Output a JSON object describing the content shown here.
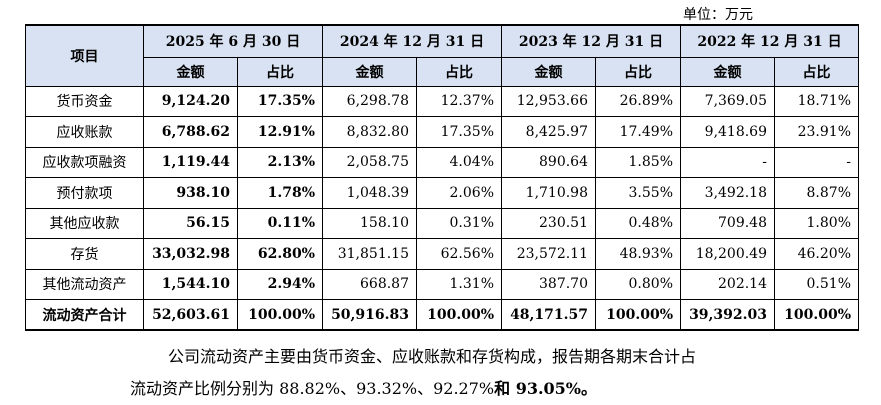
{
  "unit_label": "单位：万元",
  "table": {
    "item_header": "项目",
    "periods": [
      "2025 年 6 月 30 日",
      "2024 年 12 月 31 日",
      "2023 年 12 月 31 日",
      "2022 年 12 月 31 日"
    ],
    "amount_label": "金额",
    "ratio_label": "占比",
    "rows": [
      {
        "name": "货币资金",
        "values": [
          "9,124.20",
          "17.35%",
          "6,298.78",
          "12.37%",
          "12,953.66",
          "26.89%",
          "7,369.05",
          "18.71%"
        ]
      },
      {
        "name": "应收账款",
        "values": [
          "6,788.62",
          "12.91%",
          "8,832.80",
          "17.35%",
          "8,425.97",
          "17.49%",
          "9,418.69",
          "23.91%"
        ]
      },
      {
        "name": "应收款项融资",
        "values": [
          "1,119.44",
          "2.13%",
          "2,058.75",
          "4.04%",
          "890.64",
          "1.85%",
          "-",
          "-"
        ]
      },
      {
        "name": "预付款项",
        "values": [
          "938.10",
          "1.78%",
          "1,048.39",
          "2.06%",
          "1,710.98",
          "3.55%",
          "3,492.18",
          "8.87%"
        ]
      },
      {
        "name": "其他应收款",
        "values": [
          "56.15",
          "0.11%",
          "158.10",
          "0.31%",
          "230.51",
          "0.48%",
          "709.48",
          "1.80%"
        ]
      },
      {
        "name": "存货",
        "values": [
          "33,032.98",
          "62.80%",
          "31,851.15",
          "62.56%",
          "23,572.11",
          "48.93%",
          "18,200.49",
          "46.20%"
        ]
      },
      {
        "name": "其他流动资产",
        "values": [
          "1,544.10",
          "2.94%",
          "668.87",
          "1.31%",
          "387.70",
          "0.80%",
          "202.14",
          "0.51%"
        ]
      }
    ],
    "total": {
      "name": "流动资产合计",
      "values": [
        "52,603.61",
        "100.00%",
        "50,916.83",
        "100.00%",
        "48,171.57",
        "100.00%",
        "39,392.03",
        "100.00%"
      ]
    }
  },
  "paragraph": {
    "line1": "公司流动资产主要由货币资金、应收账款和存货构成，报告期各期末合计占",
    "line2_normal": "流动资产比例分别为 88.82%、93.32%、92.27%",
    "line2_bold": "和 93.05%。"
  }
}
